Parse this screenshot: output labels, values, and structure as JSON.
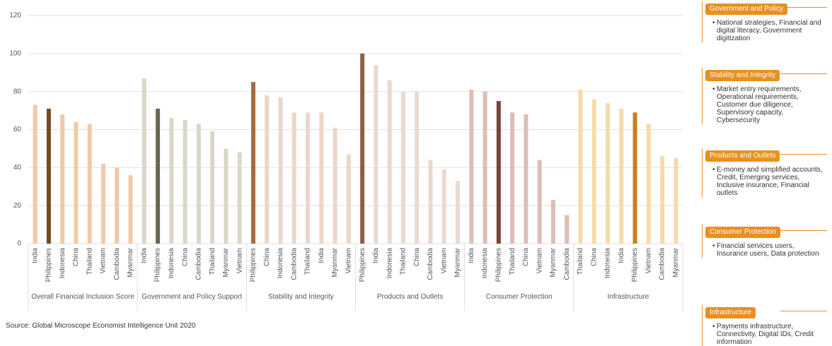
{
  "chart_data": {
    "type": "grouped_bar",
    "ylim": [
      0,
      120
    ],
    "yticks": [
      0,
      20,
      40,
      60,
      80,
      100,
      120
    ],
    "grid": true,
    "groups": [
      {
        "name": "Overall Financial Inclusion Score",
        "categories": [
          "India",
          "Philippines",
          "Indonesia",
          "China",
          "Thailand",
          "Vietnam",
          "Cambodia",
          "Myanmar"
        ],
        "values": [
          73,
          71,
          68,
          64,
          63,
          42,
          40,
          36
        ],
        "colors": [
          "#f0caa8",
          "#7a4a22",
          "#f0caa8",
          "#f0caa8",
          "#f0caa8",
          "#f0caa8",
          "#f0caa8",
          "#f0caa8"
        ]
      },
      {
        "name": "Government and Policy Support",
        "categories": [
          "India",
          "Philippines",
          "Indonesia",
          "China",
          "Cambodia",
          "Thailand",
          "Myanmar",
          "Vietnam"
        ],
        "values": [
          87,
          71,
          66,
          65,
          63,
          59,
          50,
          48
        ],
        "colors": [
          "#dbd7c7",
          "#6b6650",
          "#dbd7c7",
          "#dbd7c7",
          "#dbd7c7",
          "#dbd7c7",
          "#dbd7c7",
          "#dbd7c7"
        ]
      },
      {
        "name": "Stability and Integrity",
        "categories": [
          "Philippines",
          "China",
          "Indonesia",
          "Cambodia",
          "Thailand",
          "India",
          "Myanmar",
          "Vietnam"
        ],
        "values": [
          85,
          78,
          77,
          69,
          69,
          69,
          61,
          47
        ],
        "colors": [
          "#a26b44",
          "#ebd7c9",
          "#ebd7c9",
          "#ebd7c9",
          "#ebd7c9",
          "#ebd7c9",
          "#ebd7c9",
          "#ebd7c9"
        ]
      },
      {
        "name": "Products and Outlets",
        "categories": [
          "Philippines",
          "India",
          "Indonesia",
          "Thailand",
          "China",
          "Cambodia",
          "Vietnam",
          "Myanmar"
        ],
        "values": [
          100,
          94,
          86,
          80,
          80,
          44,
          39,
          33
        ],
        "colors": [
          "#8c5e4a",
          "#e9d9d1",
          "#e9d9d1",
          "#e9d9d1",
          "#e9d9d1",
          "#e9d9d1",
          "#e9d9d1",
          "#e9d9d1"
        ]
      },
      {
        "name": "Consumer Protection",
        "categories": [
          "India",
          "Indonesia",
          "Philippines",
          "Thailand",
          "China",
          "Vietnam",
          "Myanmar",
          "Cambodia"
        ],
        "values": [
          81,
          80,
          75,
          69,
          68,
          44,
          23,
          15
        ],
        "colors": [
          "#dcbeb4",
          "#dcbeb4",
          "#7a4235",
          "#dcbeb4",
          "#dcbeb4",
          "#dcbeb4",
          "#dcbeb4",
          "#dcbeb4"
        ]
      },
      {
        "name": "Infrastructure",
        "categories": [
          "Thailand",
          "China",
          "Indonesia",
          "India",
          "Philippines",
          "Vietnam",
          "Cambodia",
          "Myanmar"
        ],
        "values": [
          81,
          76,
          74,
          71,
          69,
          63,
          46,
          45
        ],
        "colors": [
          "#f6dba8",
          "#f6dba8",
          "#f6dba8",
          "#f6dba8",
          "#c8801a",
          "#f6dba8",
          "#f6dba8",
          "#f6dba8"
        ]
      }
    ]
  },
  "source": "Source: Global Microscope Economist Intelligence Unit 2020",
  "panel": [
    {
      "title": "Government and Policy",
      "text": "National strategies, Financial and digital literacy, Government digitization"
    },
    {
      "title": "Stability and Integrity",
      "text": "Market entry requirements, Operational requirements, Customer due diligence, Supervisory capacity, Cybersecurity"
    },
    {
      "title": "Products and Outlets",
      "text": "E-money and simplified accounts, Credit, Emerging services, Inclusive insurance, Financial outlets"
    },
    {
      "title": "Consumer Protection",
      "text": "Financial services users, Insurance users, Data protection"
    },
    {
      "title": "Infrastructure",
      "text": "Payments infrastructure, Connectivity, Digital IDs, Credit information"
    }
  ]
}
